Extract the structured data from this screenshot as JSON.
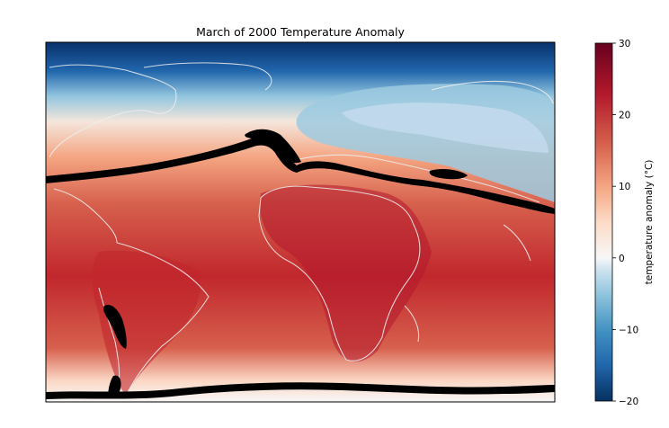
{
  "chart_data": {
    "type": "heatmap",
    "title": "March of 2000 Temperature Anomaly",
    "map": "world map (Americas, Atlantic, Europe, Africa) with coastlines",
    "colormap": "RdBu_r",
    "colorbar": {
      "label": "temperature anomaly (°C)",
      "range": [
        -20,
        30
      ],
      "ticks": [
        -20,
        -10,
        0,
        10,
        20,
        30
      ],
      "tick_labels": [
        "−20",
        "−10",
        "0",
        "10",
        "20",
        "30"
      ],
      "colors": [
        "#053061",
        "#2166ac",
        "#4393c3",
        "#92c5de",
        "#d1e5f0",
        "#f7f7f7",
        "#fddbc7",
        "#f4a582",
        "#d6604d",
        "#b2182b",
        "#67001f"
      ]
    },
    "grid": false
  }
}
